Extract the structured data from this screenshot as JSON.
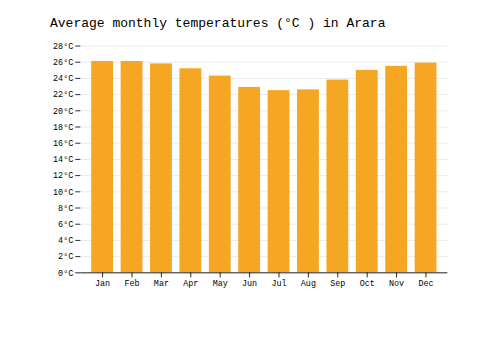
{
  "chart_data": {
    "type": "bar",
    "title": "Average monthly temperatures (°C ) in Arara",
    "categories": [
      "Jan",
      "Feb",
      "Mar",
      "Apr",
      "May",
      "Jun",
      "Jul",
      "Aug",
      "Sep",
      "Oct",
      "Nov",
      "Dec"
    ],
    "values": [
      26.1,
      26.1,
      25.8,
      25.2,
      24.3,
      22.9,
      22.5,
      22.6,
      23.8,
      25.0,
      25.5,
      25.9
    ],
    "color": "#F5A623",
    "ylim": [
      0,
      28
    ],
    "yticks": [
      {
        "value": 0,
        "label": "0°C"
      },
      {
        "value": 2,
        "label": "2°C"
      },
      {
        "value": 4,
        "label": "4°C"
      },
      {
        "value": 6,
        "label": "6°C"
      },
      {
        "value": 8,
        "label": "8°C"
      },
      {
        "value": 10,
        "label": "10°C"
      },
      {
        "value": 12,
        "label": "12°C"
      },
      {
        "value": 14,
        "label": "14°C"
      },
      {
        "value": 16,
        "label": "16°C"
      },
      {
        "value": 18,
        "label": "18°C"
      },
      {
        "value": 20,
        "label": "20°C"
      },
      {
        "value": 22,
        "label": "22°C"
      },
      {
        "value": 24,
        "label": "24°C"
      },
      {
        "value": 26,
        "label": "26°C"
      },
      {
        "value": 28,
        "label": "28°C"
      }
    ],
    "grid": true
  }
}
